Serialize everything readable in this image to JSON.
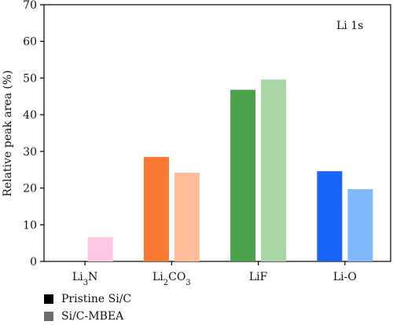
{
  "chart_data": {
    "type": "bar",
    "annotation": "Li 1s",
    "ylabel": "Relative peak area (%)",
    "ylim": [
      0,
      70
    ],
    "yticks": [
      0,
      10,
      20,
      30,
      40,
      50,
      60,
      70
    ],
    "categories": [
      {
        "base": "Li",
        "sub": "3",
        "tail": "N",
        "tail_sub": ""
      },
      {
        "base": "Li",
        "sub": "2",
        "tail": "CO",
        "tail_sub": "3"
      },
      {
        "base": "LiF",
        "sub": "",
        "tail": "",
        "tail_sub": ""
      },
      {
        "base": "Li-O",
        "sub": "",
        "tail": "",
        "tail_sub": ""
      }
    ],
    "series": [
      {
        "name": "Pristine Si/C",
        "values": [
          0,
          28.5,
          46.8,
          24.6
        ]
      },
      {
        "name": "Si/C-MBEA",
        "values": [
          6.6,
          24.2,
          49.6,
          19.7
        ]
      }
    ],
    "bar_colors": [
      [
        "#ffffff",
        "#ffc8e4"
      ],
      [
        "#fb7a33",
        "#fdbd98"
      ],
      [
        "#4ba14b",
        "#a9d7a6"
      ],
      [
        "#1764f5",
        "#80b9fb"
      ]
    ],
    "legend_colors": [
      "#000000",
      "#6d6d6d"
    ]
  },
  "legend": {
    "items": [
      {
        "label": "Pristine Si/C",
        "color": "#000000"
      },
      {
        "label": "Si/C-MBEA",
        "color": "#6d6d6d"
      }
    ]
  }
}
